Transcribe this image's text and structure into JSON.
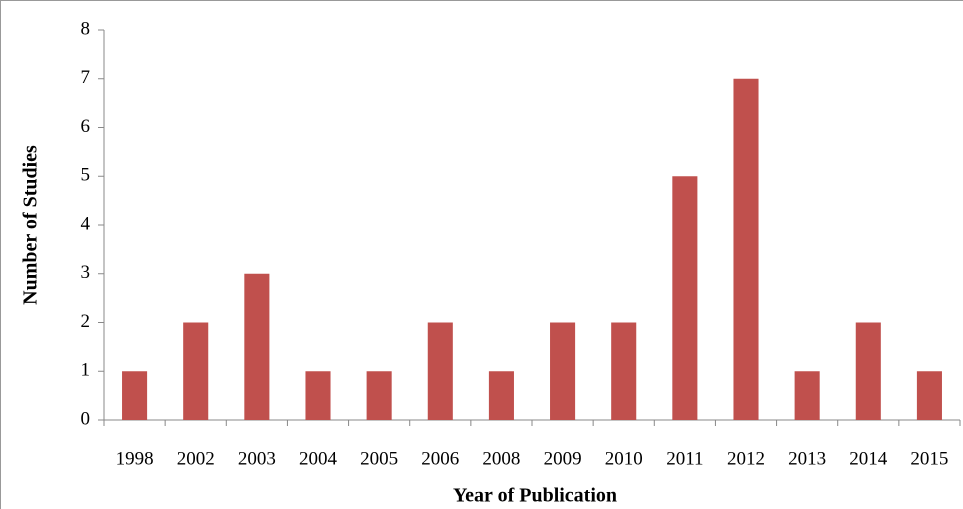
{
  "chart_data": {
    "type": "bar",
    "categories": [
      "1998",
      "2002",
      "2003",
      "2004",
      "2005",
      "2006",
      "2008",
      "2009",
      "2010",
      "2011",
      "2012",
      "2013",
      "2014",
      "2015"
    ],
    "values": [
      1,
      2,
      3,
      1,
      1,
      2,
      1,
      2,
      2,
      5,
      7,
      1,
      2,
      1
    ],
    "color": "#c0504d",
    "xlabel": "Year of Publication",
    "ylabel": "Number of Studies",
    "ylim": [
      0,
      8
    ],
    "yticks": [
      0,
      1,
      2,
      3,
      4,
      5,
      6,
      7,
      8
    ],
    "grid": false
  }
}
